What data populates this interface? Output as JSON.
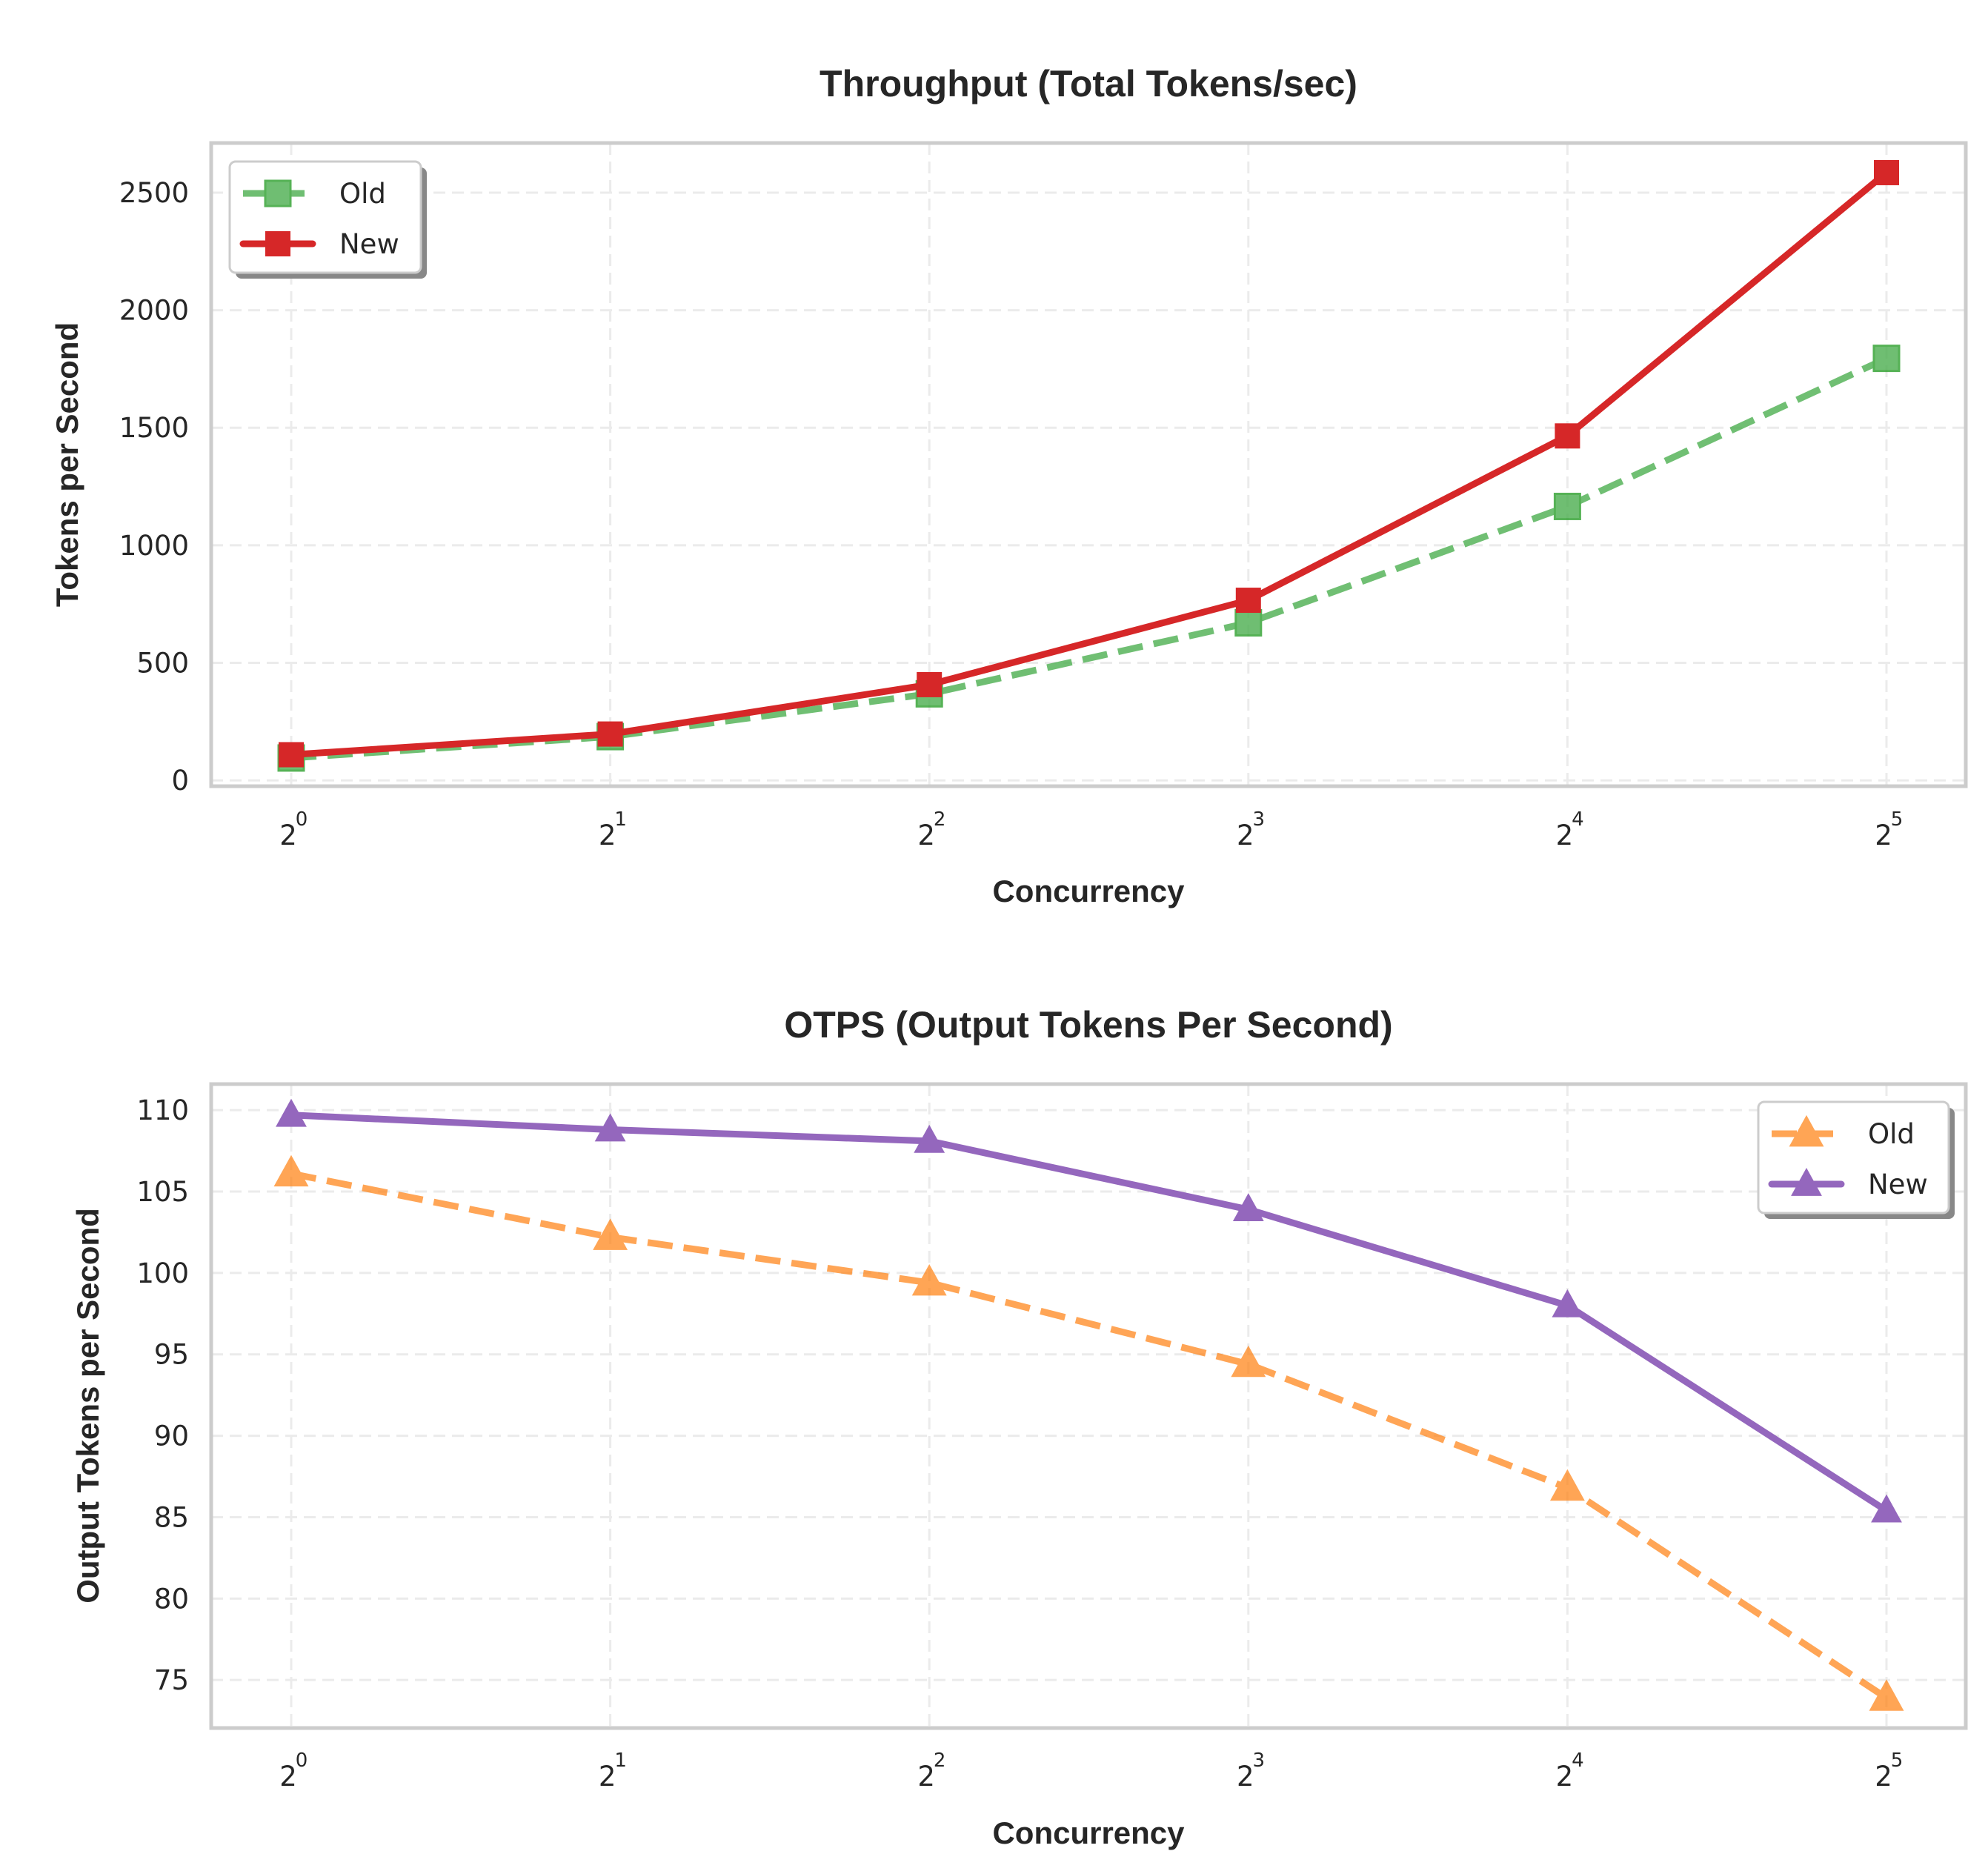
{
  "chart_data": [
    {
      "id": "throughput",
      "type": "line",
      "title": "Throughput (Total Tokens/sec)",
      "xlabel": "Concurrency",
      "ylabel": "Tokens per Second",
      "xscale": "log2",
      "x": [
        1,
        2,
        4,
        8,
        16,
        32
      ],
      "xtick_labels": [
        {
          "base": "2",
          "exp": "0"
        },
        {
          "base": "2",
          "exp": "1"
        },
        {
          "base": "2",
          "exp": "2"
        },
        {
          "base": "2",
          "exp": "3"
        },
        {
          "base": "2",
          "exp": "4"
        },
        {
          "base": "2",
          "exp": "5"
        }
      ],
      "yticks": [
        0,
        500,
        1000,
        1500,
        2000,
        2500
      ],
      "ytick_labels": [
        "0",
        "500",
        "1000",
        "1500",
        "2000",
        "2500"
      ],
      "ylim": [
        -25,
        2711
      ],
      "grid": true,
      "legend_position": "upper-left",
      "series": [
        {
          "name": "Old",
          "values": [
            95,
            186,
            368,
            670,
            1165,
            1795
          ],
          "color": "#4caf50",
          "style": "dashed",
          "marker": "square",
          "alpha": 0.8
        },
        {
          "name": "New",
          "values": [
            109,
            197,
            407,
            766,
            1465,
            2585
          ],
          "color": "#d62728",
          "style": "solid",
          "marker": "square",
          "alpha": 1.0
        }
      ]
    },
    {
      "id": "otps",
      "type": "line",
      "title": "OTPS (Output Tokens Per Second)",
      "xlabel": "Concurrency",
      "ylabel": "Output Tokens per Second",
      "xscale": "log2",
      "x": [
        1,
        2,
        4,
        8,
        16,
        32
      ],
      "xtick_labels": [
        {
          "base": "2",
          "exp": "0"
        },
        {
          "base": "2",
          "exp": "1"
        },
        {
          "base": "2",
          "exp": "2"
        },
        {
          "base": "2",
          "exp": "3"
        },
        {
          "base": "2",
          "exp": "4"
        },
        {
          "base": "2",
          "exp": "5"
        }
      ],
      "yticks": [
        75,
        80,
        85,
        90,
        95,
        100,
        105,
        110
      ],
      "ytick_labels": [
        "75",
        "80",
        "85",
        "90",
        "95",
        "100",
        "105",
        "110"
      ],
      "ylim": [
        72.05,
        111.6
      ],
      "grid": true,
      "legend_position": "upper-right",
      "series": [
        {
          "name": "Old",
          "values": [
            106.1,
            102.2,
            99.4,
            94.4,
            86.8,
            73.9
          ],
          "color": "#ff7f0e",
          "style": "dashed",
          "marker": "triangle",
          "alpha": 0.7
        },
        {
          "name": "New",
          "values": [
            109.7,
            108.8,
            108.1,
            103.9,
            98.0,
            85.4
          ],
          "color": "#9467bd",
          "style": "solid",
          "marker": "triangle",
          "alpha": 1.0
        }
      ]
    }
  ]
}
